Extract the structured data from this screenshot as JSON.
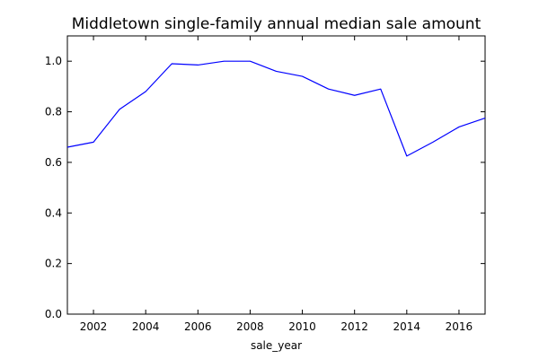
{
  "chart_data": {
    "type": "line",
    "title": "Middletown single-family annual median sale amount",
    "xlabel": "sale_year",
    "ylabel": "",
    "xlim": [
      2001,
      2017
    ],
    "ylim": [
      0.0,
      1.1
    ],
    "x_ticks": [
      2002,
      2004,
      2006,
      2008,
      2010,
      2012,
      2014,
      2016
    ],
    "y_ticks": [
      0.0,
      0.2,
      0.4,
      0.6,
      0.8,
      1.0
    ],
    "grid": false,
    "legend": "none",
    "series": [
      {
        "color": "#0000ff",
        "x": [
          2001,
          2002,
          2003,
          2004,
          2005,
          2006,
          2007,
          2008,
          2009,
          2010,
          2011,
          2012,
          2013,
          2014,
          2015,
          2016,
          2017
        ],
        "y": [
          0.66,
          0.68,
          0.81,
          0.88,
          0.99,
          0.985,
          1.0,
          1.0,
          0.96,
          0.94,
          0.89,
          0.865,
          0.89,
          0.625,
          0.68,
          0.74,
          0.775
        ]
      }
    ]
  }
}
